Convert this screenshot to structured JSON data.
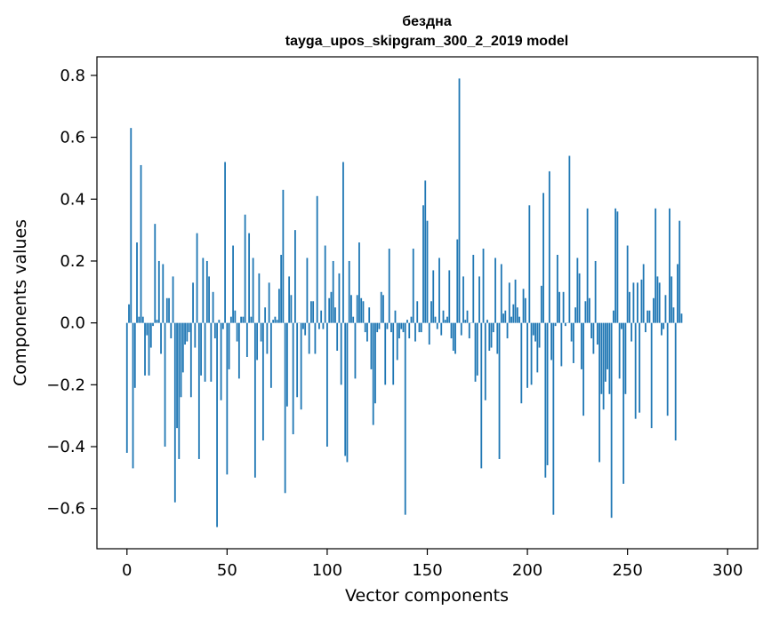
{
  "chart_data": {
    "type": "bar",
    "title": "бездна",
    "subtitle": "tayga_upos_skipgram_300_2_2019 model",
    "xlabel": "Vector components",
    "ylabel": "Components values",
    "xlim": [
      -15,
      315
    ],
    "ylim": [
      -0.73,
      0.86
    ],
    "x_ticks": [
      0,
      50,
      100,
      150,
      200,
      250,
      300
    ],
    "x_tick_labels": [
      "0",
      "50",
      "100",
      "150",
      "200",
      "250",
      "300"
    ],
    "y_ticks": [
      -0.6,
      -0.4,
      -0.2,
      0.0,
      0.2,
      0.4,
      0.6,
      0.8
    ],
    "y_tick_labels": [
      "−0.6",
      "−0.4",
      "−0.2",
      "0.0",
      "0.2",
      "0.4",
      "0.6",
      "0.8"
    ],
    "grid": false,
    "bar_color": "#1f77b4",
    "values": [
      -0.42,
      0.06,
      0.63,
      -0.47,
      -0.21,
      0.26,
      0.02,
      0.51,
      0.02,
      -0.17,
      -0.04,
      -0.17,
      -0.08,
      -0.01,
      0.32,
      0.01,
      0.2,
      -0.1,
      0.19,
      -0.4,
      0.08,
      0.08,
      -0.05,
      0.15,
      -0.58,
      -0.34,
      -0.44,
      -0.24,
      -0.16,
      -0.07,
      -0.06,
      -0.03,
      -0.24,
      0.13,
      -0.08,
      0.29,
      -0.44,
      -0.17,
      0.21,
      -0.19,
      0.2,
      0.15,
      -0.19,
      0.1,
      -0.05,
      -0.66,
      0.01,
      -0.25,
      -0.02,
      0.52,
      -0.49,
      -0.15,
      0.02,
      0.25,
      0.04,
      -0.06,
      -0.18,
      0.02,
      0.02,
      0.35,
      -0.11,
      0.29,
      0.02,
      0.21,
      -0.5,
      -0.12,
      0.16,
      -0.06,
      -0.38,
      0.05,
      -0.1,
      0.13,
      -0.21,
      0.01,
      0.02,
      0.01,
      0.11,
      0.22,
      0.43,
      -0.55,
      -0.27,
      0.15,
      0.09,
      -0.36,
      0.3,
      -0.24,
      0.0,
      -0.28,
      -0.02,
      -0.04,
      0.21,
      -0.1,
      0.07,
      0.07,
      -0.1,
      0.41,
      -0.02,
      0.04,
      -0.02,
      0.25,
      -0.4,
      0.08,
      0.1,
      0.2,
      0.05,
      -0.09,
      0.16,
      -0.2,
      0.52,
      -0.43,
      -0.45,
      0.2,
      0.09,
      0.02,
      -0.18,
      0.09,
      0.26,
      0.08,
      0.07,
      -0.03,
      -0.06,
      0.05,
      -0.15,
      -0.33,
      -0.26,
      -0.03,
      -0.02,
      0.1,
      0.09,
      -0.2,
      -0.02,
      0.24,
      -0.03,
      -0.2,
      0.04,
      -0.12,
      -0.05,
      -0.02,
      -0.03,
      -0.62,
      0.01,
      -0.05,
      0.02,
      0.24,
      -0.06,
      0.07,
      -0.03,
      -0.03,
      0.38,
      0.46,
      0.33,
      -0.07,
      0.07,
      0.17,
      0.02,
      -0.02,
      0.21,
      -0.04,
      0.04,
      0.01,
      0.02,
      0.17,
      -0.05,
      -0.09,
      -0.1,
      0.27,
      0.79,
      -0.04,
      0.15,
      0.01,
      0.04,
      -0.05,
      0.0,
      0.22,
      -0.19,
      -0.17,
      0.15,
      -0.47,
      0.24,
      -0.25,
      0.01,
      -0.09,
      -0.08,
      -0.03,
      0.21,
      -0.1,
      -0.44,
      0.19,
      0.03,
      0.04,
      -0.05,
      0.13,
      0.02,
      0.06,
      0.14,
      0.05,
      0.02,
      -0.26,
      0.11,
      0.08,
      -0.21,
      0.38,
      -0.2,
      -0.04,
      -0.06,
      -0.16,
      -0.08,
      0.12,
      0.42,
      -0.5,
      -0.46,
      0.49,
      -0.12,
      -0.62,
      -0.01,
      0.22,
      0.1,
      -0.14,
      0.1,
      -0.01,
      0.0,
      0.54,
      -0.06,
      -0.13,
      0.05,
      0.21,
      0.16,
      -0.15,
      -0.3,
      0.07,
      0.37,
      0.08,
      -0.05,
      -0.1,
      0.2,
      -0.07,
      -0.45,
      -0.23,
      -0.28,
      -0.19,
      -0.15,
      -0.23,
      -0.63,
      0.04,
      0.37,
      0.36,
      -0.18,
      -0.02,
      -0.52,
      -0.23,
      0.25,
      0.1,
      -0.06,
      0.13,
      -0.31,
      0.13,
      -0.29,
      0.14,
      0.19,
      -0.03,
      0.04,
      0.04,
      -0.34,
      0.08,
      0.37,
      0.15,
      0.13,
      -0.04,
      -0.02,
      0.09,
      -0.3,
      0.37,
      0.15,
      0.05,
      -0.38,
      0.19,
      0.33,
      0.03
    ]
  }
}
